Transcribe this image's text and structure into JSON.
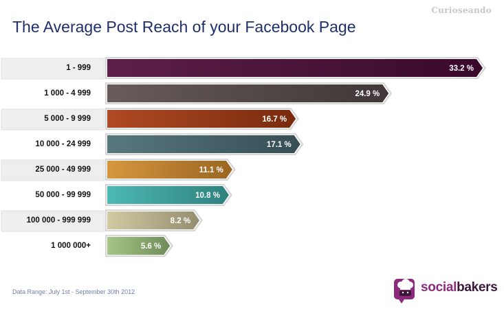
{
  "watermark": "Curioseando",
  "footer": {
    "data_range": "Data Range: July 1st - September 30th 2012"
  },
  "brand": {
    "name_part1": "social",
    "name_part2": "bakers",
    "logo_icon": "socialbakers-chef-logo-icon"
  },
  "chart_data": {
    "type": "bar",
    "orientation": "horizontal",
    "title": "The Average Post Reach of your Facebook Page",
    "categories": [
      "1 - 999",
      "1 000 - 4 999",
      "5 000 - 9 999",
      "10 000 - 24 999",
      "25 000 - 49 999",
      "50 000 - 99 999",
      "100 000 - 999 999",
      "1 000 000+"
    ],
    "values": [
      33.2,
      24.9,
      16.7,
      17.1,
      11.1,
      10.8,
      8.2,
      5.6
    ],
    "value_labels": [
      "33.2 %",
      "24.9 %",
      "16.7 %",
      "17.1 %",
      "11.1 %",
      "10.8 %",
      "8.2 %",
      "5.6 %"
    ],
    "unit": "%",
    "colors": [
      "#4f0c3a",
      "#5a4d4d",
      "#a83a12",
      "#4a6c74",
      "#d48d2e",
      "#3fb3ad",
      "#cdc59a",
      "#9cc17c"
    ],
    "xlim": [
      0,
      33.2
    ],
    "grid": false,
    "legend": "none"
  }
}
